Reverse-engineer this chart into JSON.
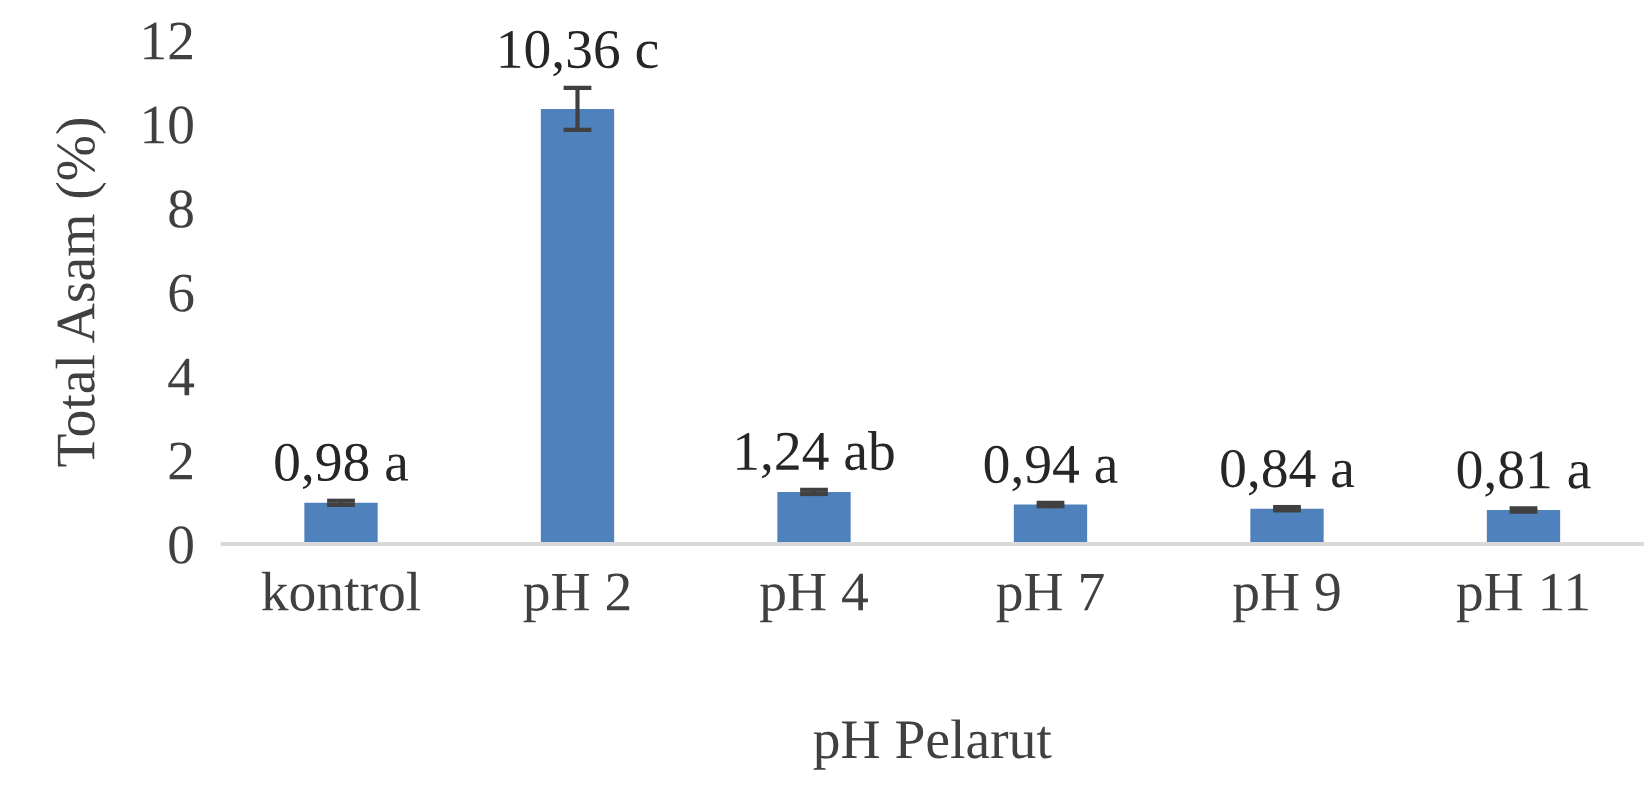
{
  "chart_data": {
    "type": "bar",
    "xlabel": "pH Pelarut",
    "ylabel": "Total Asam (%)",
    "categories": [
      "kontrol",
      "pH 2",
      "pH 4",
      "pH 7",
      "pH 9",
      "pH 11"
    ],
    "values": [
      0.98,
      10.36,
      1.24,
      0.94,
      0.84,
      0.81
    ],
    "errors": [
      0.05,
      0.5,
      0.05,
      0.04,
      0.04,
      0.04
    ],
    "value_labels": [
      "0,98 a",
      "10,36 c",
      "1,24 ab",
      "0,94 a",
      "0,84 a",
      "0,81 a"
    ],
    "color": "#4f81bd",
    "ylim": [
      0,
      12
    ],
    "yticks": [
      0,
      2,
      4,
      6,
      8,
      10,
      12
    ],
    "grid": false,
    "legend": false
  }
}
